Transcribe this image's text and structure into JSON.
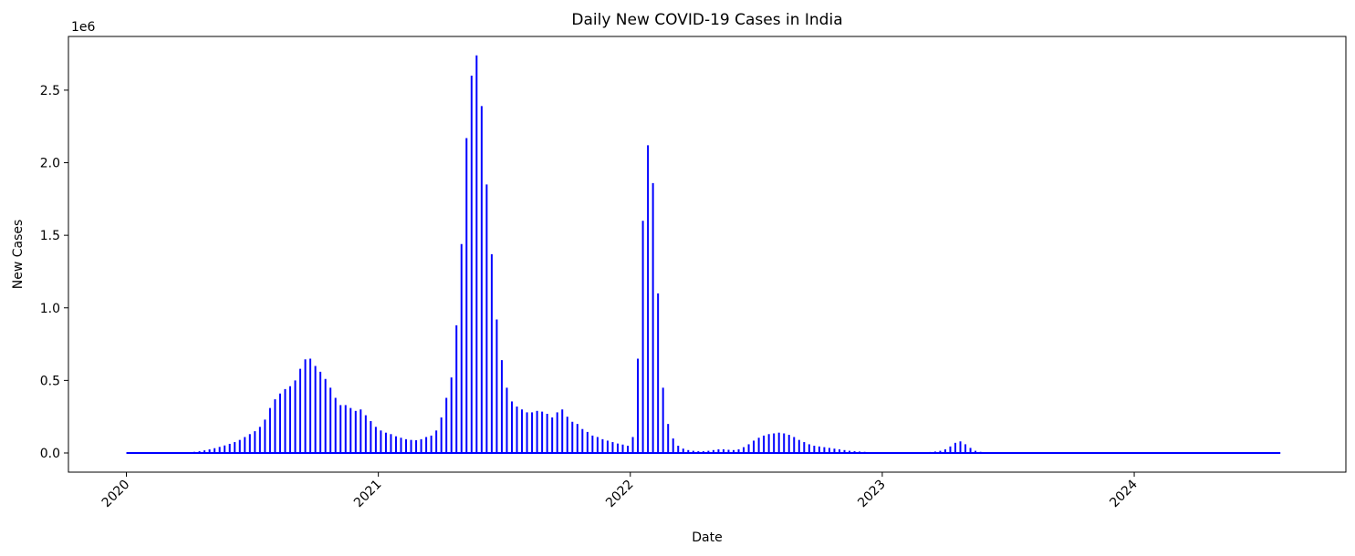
{
  "chart_data": {
    "type": "stem",
    "title": "Daily New COVID-19 Cases in India",
    "x_label": "Date",
    "y_label": "New Cases",
    "y_offset_label": "1e6",
    "color": "#0000ff",
    "x": [
      2020.0,
      2020.25,
      2020.27,
      2020.29,
      2020.31,
      2020.33,
      2020.35,
      2020.37,
      2020.39,
      2020.41,
      2020.43,
      2020.45,
      2020.47,
      2020.49,
      2020.51,
      2020.53,
      2020.55,
      2020.57,
      2020.59,
      2020.61,
      2020.63,
      2020.65,
      2020.67,
      2020.69,
      2020.71,
      2020.73,
      2020.75,
      2020.77,
      2020.79,
      2020.81,
      2020.83,
      2020.85,
      2020.87,
      2020.89,
      2020.91,
      2020.93,
      2020.95,
      2020.97,
      2020.99,
      2021.01,
      2021.03,
      2021.05,
      2021.07,
      2021.09,
      2021.11,
      2021.13,
      2021.15,
      2021.17,
      2021.19,
      2021.21,
      2021.23,
      2021.25,
      2021.27,
      2021.29,
      2021.31,
      2021.33,
      2021.35,
      2021.37,
      2021.39,
      2021.41,
      2021.43,
      2021.45,
      2021.47,
      2021.49,
      2021.51,
      2021.53,
      2021.55,
      2021.57,
      2021.59,
      2021.61,
      2021.63,
      2021.65,
      2021.67,
      2021.69,
      2021.71,
      2021.73,
      2021.75,
      2021.77,
      2021.79,
      2021.81,
      2021.83,
      2021.85,
      2021.87,
      2021.89,
      2021.91,
      2021.93,
      2021.95,
      2021.97,
      2021.99,
      2022.01,
      2022.03,
      2022.05,
      2022.07,
      2022.09,
      2022.11,
      2022.13,
      2022.15,
      2022.17,
      2022.19,
      2022.21,
      2022.23,
      2022.25,
      2022.27,
      2022.29,
      2022.31,
      2022.33,
      2022.35,
      2022.37,
      2022.39,
      2022.41,
      2022.43,
      2022.45,
      2022.47,
      2022.49,
      2022.51,
      2022.53,
      2022.55,
      2022.57,
      2022.59,
      2022.61,
      2022.63,
      2022.65,
      2022.67,
      2022.69,
      2022.71,
      2022.73,
      2022.75,
      2022.77,
      2022.79,
      2022.81,
      2022.83,
      2022.85,
      2022.87,
      2022.89,
      2022.91,
      2022.93,
      2022.95,
      2022.97,
      2022.99,
      2023.01,
      2023.03,
      2023.05,
      2023.07,
      2023.09,
      2023.11,
      2023.13,
      2023.15,
      2023.17,
      2023.19,
      2023.21,
      2023.23,
      2023.25,
      2023.27,
      2023.29,
      2023.31,
      2023.33,
      2023.35,
      2023.37,
      2023.39,
      2023.41,
      2023.43,
      2023.45,
      2024.58
    ],
    "values": [
      0,
      5000,
      8000,
      12000,
      18000,
      25000,
      33000,
      42000,
      52000,
      63000,
      75000,
      90000,
      110000,
      130000,
      150000,
      180000,
      230000,
      310000,
      370000,
      410000,
      440000,
      460000,
      500000,
      580000,
      645000,
      650000,
      600000,
      560000,
      510000,
      450000,
      380000,
      330000,
      330000,
      310000,
      290000,
      300000,
      260000,
      220000,
      180000,
      155000,
      140000,
      130000,
      115000,
      105000,
      95000,
      90000,
      88000,
      95000,
      110000,
      120000,
      155000,
      245000,
      380000,
      520000,
      880000,
      1440000,
      2170000,
      2600000,
      2740000,
      2390000,
      1850000,
      1370000,
      920000,
      640000,
      450000,
      355000,
      320000,
      300000,
      280000,
      280000,
      290000,
      285000,
      270000,
      245000,
      280000,
      300000,
      250000,
      215000,
      200000,
      165000,
      145000,
      120000,
      110000,
      95000,
      85000,
      75000,
      65000,
      58000,
      50000,
      110000,
      650000,
      1600000,
      2120000,
      1860000,
      1100000,
      450000,
      200000,
      100000,
      50000,
      30000,
      20000,
      15000,
      12000,
      12000,
      15000,
      20000,
      25000,
      25000,
      22000,
      20000,
      25000,
      40000,
      60000,
      85000,
      105000,
      120000,
      130000,
      135000,
      140000,
      135000,
      125000,
      110000,
      90000,
      75000,
      60000,
      50000,
      45000,
      40000,
      35000,
      30000,
      25000,
      20000,
      15000,
      12000,
      10000,
      8000,
      6000,
      5000,
      4000,
      3000,
      3000,
      3000,
      3000,
      3000,
      3000,
      3000,
      4000,
      5000,
      7000,
      10000,
      15000,
      25000,
      45000,
      70000,
      80000,
      60000,
      35000,
      15000,
      8000,
      5000,
      4000,
      3000,
      0
    ],
    "xlim": [
      2019.77,
      2024.84
    ],
    "xticks": [
      2020,
      2021,
      2022,
      2023,
      2024
    ],
    "ylim": [
      -132000,
      2870000
    ],
    "yticks": [
      {
        "value": 0,
        "label": "0.0"
      },
      {
        "value": 500000,
        "label": "0.5"
      },
      {
        "value": 1000000,
        "label": "1.0"
      },
      {
        "value": 1500000,
        "label": "1.5"
      },
      {
        "value": 2000000,
        "label": "2.0"
      },
      {
        "value": 2500000,
        "label": "2.5"
      }
    ],
    "grid": false
  }
}
